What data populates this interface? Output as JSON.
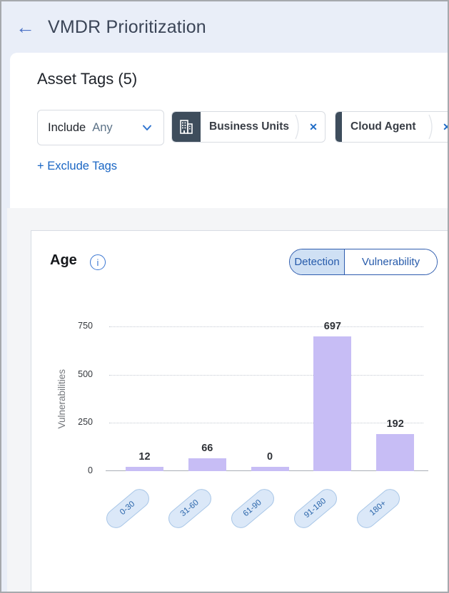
{
  "header": {
    "title": "VMDR Prioritization",
    "back_glyph": "←"
  },
  "asset_tags": {
    "title": "Asset Tags (5)",
    "include_label": "Include",
    "include_value": "Any",
    "close_glyph": "✕",
    "tags": [
      {
        "label": "Business Units",
        "style": "icon"
      },
      {
        "label": "Cloud Agent",
        "style": "bar"
      }
    ],
    "exclude_link": "+ Exclude Tags"
  },
  "age_card": {
    "title": "Age",
    "info_glyph": "i",
    "toggle": {
      "options": [
        "Detection",
        "Vulnerability"
      ],
      "selected": "Detection"
    }
  },
  "chart_data": {
    "type": "bar",
    "title": "Age",
    "categories": [
      "0-30",
      "31-60",
      "61-90",
      "91-180",
      "180+"
    ],
    "values": [
      12,
      66,
      0,
      697,
      192
    ],
    "xlabel": "",
    "ylabel": "Vulnerabilities",
    "ylim": [
      0,
      750
    ],
    "yticks": [
      0,
      250,
      500,
      750
    ],
    "grid": "horizontal-dotted",
    "legend": "none",
    "bar_color": "#c7bdf5"
  },
  "colors": {
    "page_bg": "#e9eef8",
    "section_bg": "#f4f5f7",
    "accent_blue": "#1e6bc6",
    "toggle_blue": "#2e5cae",
    "toggle_selected_bg": "#cfe0f4",
    "chip_icon_bg": "#3e4d5c",
    "bar_fill": "#c7bdf5",
    "pill_bg": "#dbe8f8",
    "pill_border": "#a8c6e7"
  }
}
